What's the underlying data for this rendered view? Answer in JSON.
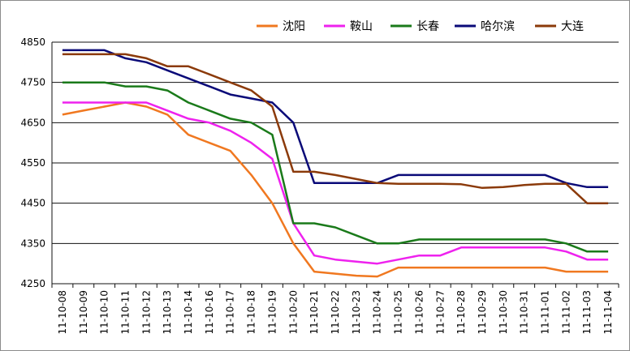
{
  "chart_data": {
    "type": "line",
    "x": [
      "11-10-08",
      "11-10-09",
      "11-10-10",
      "11-10-11",
      "11-10-12",
      "11-10-13",
      "11-10-14",
      "11-10-16",
      "11-10-17",
      "11-10-18",
      "11-10-19",
      "11-10-20",
      "11-10-21",
      "11-10-22",
      "11-10-23",
      "11-10-24",
      "11-10-25",
      "11-10-26",
      "11-10-27",
      "11-10-28",
      "11-10-29",
      "11-10-30",
      "11-10-31",
      "11-11-01",
      "11-11-02",
      "11-11-03",
      "11-11-04"
    ],
    "ylim": [
      4250,
      4850
    ],
    "yticks": [
      4250,
      4350,
      4450,
      4550,
      4650,
      4750,
      4850
    ],
    "grid": true,
    "legend_position": "top",
    "series": [
      {
        "name": "沈阳",
        "color": "#f07820",
        "values": [
          4670,
          4680,
          4690,
          4700,
          4690,
          4670,
          4620,
          4600,
          4580,
          4520,
          4450,
          4350,
          4280,
          4275,
          4270,
          4268,
          4290,
          4290,
          4290,
          4290,
          4290,
          4290,
          4290,
          4290,
          4280,
          4280,
          4280
        ]
      },
      {
        "name": "鞍山",
        "color": "#ee22ee",
        "values": [
          4700,
          4700,
          4700,
          4700,
          4700,
          4680,
          4660,
          4650,
          4630,
          4600,
          4560,
          4400,
          4320,
          4310,
          4305,
          4300,
          4310,
          4320,
          4320,
          4340,
          4340,
          4340,
          4340,
          4340,
          4330,
          4310,
          4310
        ]
      },
      {
        "name": "长春",
        "color": "#1a7a1a",
        "values": [
          4750,
          4750,
          4750,
          4740,
          4740,
          4730,
          4700,
          4680,
          4660,
          4650,
          4620,
          4400,
          4400,
          4390,
          4370,
          4350,
          4350,
          4360,
          4360,
          4360,
          4360,
          4360,
          4360,
          4360,
          4350,
          4330,
          4330
        ]
      },
      {
        "name": "哈尔滨",
        "color": "#0a0a78",
        "values": [
          4830,
          4830,
          4830,
          4810,
          4800,
          4780,
          4760,
          4740,
          4720,
          4710,
          4700,
          4650,
          4500,
          4500,
          4500,
          4500,
          4520,
          4520,
          4520,
          4520,
          4520,
          4520,
          4520,
          4520,
          4500,
          4490,
          4490
        ]
      },
      {
        "name": "大连",
        "color": "#8b3a0a",
        "values": [
          4820,
          4820,
          4820,
          4820,
          4810,
          4790,
          4790,
          4770,
          4750,
          4730,
          4690,
          4528,
          4528,
          4520,
          4510,
          4500,
          4498,
          4498,
          4498,
          4497,
          4488,
          4490,
          4495,
          4498,
          4498,
          4450,
          4450
        ]
      }
    ]
  }
}
